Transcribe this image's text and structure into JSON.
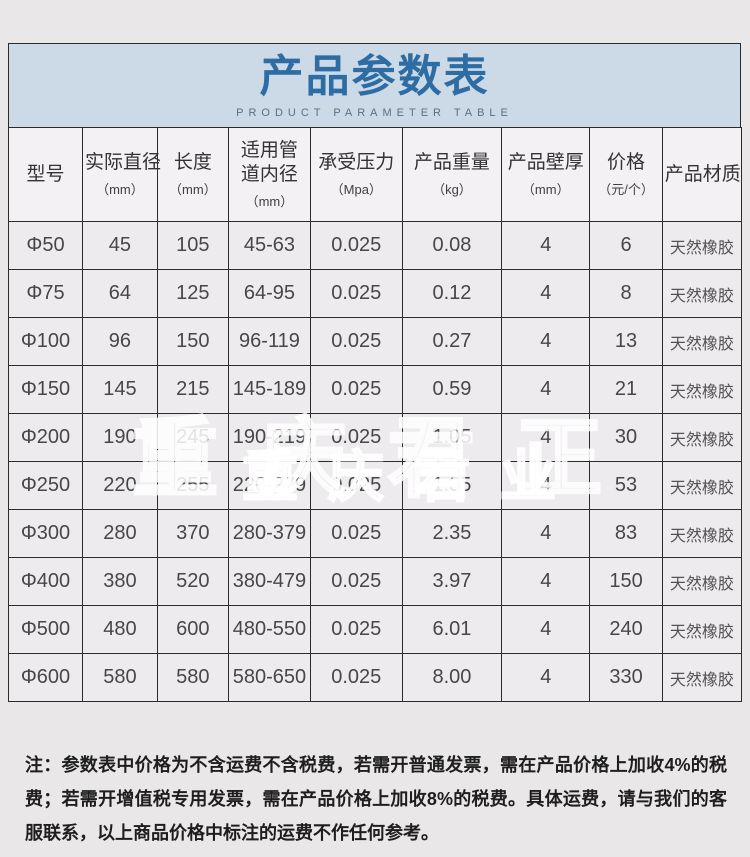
{
  "banner": {
    "title": "产品参数表",
    "subtitle": "PRODUCT PARAMETER TABLE",
    "title_color": "#2e6da4",
    "background": "#ccd9e6"
  },
  "table": {
    "columns": [
      {
        "label": "型号",
        "unit": ""
      },
      {
        "label": "实际直径",
        "unit": "（mm）"
      },
      {
        "label": "长度",
        "unit": "（mm）"
      },
      {
        "label": "适用管道内径",
        "unit": "（mm）"
      },
      {
        "label": "承受压力",
        "unit": "（Mpa）"
      },
      {
        "label": "产品重量",
        "unit": "（kg）"
      },
      {
        "label": "产品壁厚",
        "unit": "（mm）"
      },
      {
        "label": "价格",
        "unit": "（元/个）"
      },
      {
        "label": "产品材质",
        "unit": ""
      }
    ],
    "rows": [
      [
        "Φ50",
        "45",
        "105",
        "45-63",
        "0.025",
        "0.08",
        "4",
        "6",
        "天然橡胶"
      ],
      [
        "Φ75",
        "64",
        "125",
        "64-95",
        "0.025",
        "0.12",
        "4",
        "8",
        "天然橡胶"
      ],
      [
        "Φ100",
        "96",
        "150",
        "96-119",
        "0.025",
        "0.27",
        "4",
        "13",
        "天然橡胶"
      ],
      [
        "Φ150",
        "145",
        "215",
        "145-189",
        "0.025",
        "0.59",
        "4",
        "21",
        "天然橡胶"
      ],
      [
        "Φ200",
        "190",
        "245",
        "190-219",
        "0.025",
        "1.05",
        "4",
        "30",
        "天然橡胶"
      ],
      [
        "Φ250",
        "220",
        "255",
        "220-279",
        "0.025",
        "1.35",
        "4",
        "53",
        "天然橡胶"
      ],
      [
        "Φ300",
        "280",
        "370",
        "280-379",
        "0.025",
        "2.35",
        "4",
        "83",
        "天然橡胶"
      ],
      [
        "Φ400",
        "380",
        "520",
        "380-479",
        "0.025",
        "3.97",
        "4",
        "150",
        "天然橡胶"
      ],
      [
        "Φ500",
        "480",
        "600",
        "480-550",
        "0.025",
        "6.01",
        "4",
        "240",
        "天然橡胶"
      ],
      [
        "Φ600",
        "580",
        "580",
        "580-650",
        "0.025",
        "8.00",
        "4",
        "330",
        "天然橡胶"
      ]
    ]
  },
  "watermark": {
    "large": "重庆君正",
    "small": "重庆君业"
  },
  "note": "注：参数表中价格为不含运费不含税费，若需开普通发票，需在产品价格上加收4%的税费；若需开增值税专用发票，需在产品价格上加收8%的税费。具体运费，请与我们的客服联系，以上商品价格中标注的运费不作任何参考。"
}
